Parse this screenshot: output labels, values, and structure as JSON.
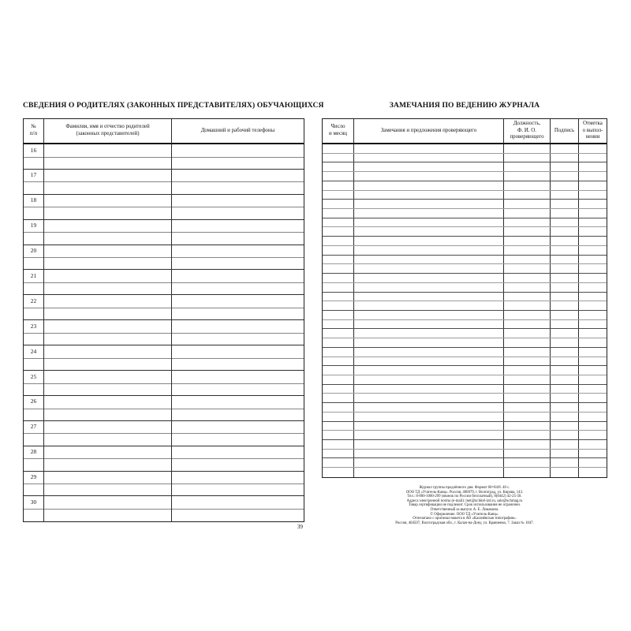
{
  "left": {
    "title": "СВЕДЕНИЯ О РОДИТЕЛЯХ (ЗАКОННЫХ ПРЕДСТАВИТЕЛЯХ) ОБУЧАЮЩИХСЯ",
    "columns": {
      "no": "№\nп/п",
      "name": "Фамилия, имя и отчество родителей\n(законных представителей)",
      "phone": "Домашний и рабочий телефоны"
    },
    "row_numbers": [
      "16",
      "17",
      "18",
      "19",
      "20",
      "21",
      "22",
      "23",
      "24",
      "25",
      "26",
      "27",
      "28",
      "29",
      "30"
    ]
  },
  "right": {
    "title": "ЗАМЕЧАНИЯ ПО ВЕДЕНИЮ ЖУРНАЛА",
    "columns": {
      "date": "Число\nи месяц",
      "remarks": "Замечания и предложения проверяющего",
      "official": "Должность,\nФ. И. О.\nпроверяющего",
      "signature": "Подпись",
      "mark": "Отметка\nо выпол-\nнении"
    },
    "row_count": 36
  },
  "page_number": "39",
  "imprint": [
    "Журнал группы продлённого дня. Формат 60×84/8. 40 с.",
    "ООО ТД «Учитель-Канц». Россия, 400079, г. Волгоград, ул. Кирова, 143.",
    "Тел.: 8-800-1000-299 (звонок по России бесплатный), 8(8442) 42-25-58.",
    "Адреса электронной почты (e-mail): met@uchitel-izd.ru, sale@uchmag.ru",
    "Товар сертификации не подлежит. Срок использования не ограничен.",
    "Ответственный за выпуск А. Е. Ломакина.",
    "© Оформление. ООО ТД «Учитель-Канц».",
    "Отпечатано с оригинал-макета в АО «Калачёвская типография».",
    "Россия, 404507, Волгоградская обл., г. Калач-на-Дону, ул. Кравченко, 7. Заказ № 1847."
  ]
}
